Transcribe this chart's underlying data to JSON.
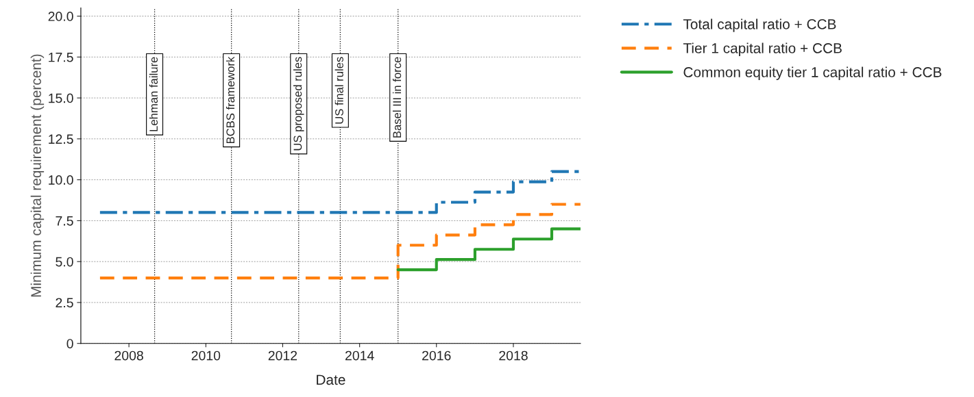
{
  "chart_data": {
    "type": "step",
    "xlabel": "Date",
    "ylabel": "Minimum capital requirement (percent)",
    "xlim": [
      "2006-10",
      "2019-10"
    ],
    "xticks": [
      {
        "value": "2008-01-01",
        "label": "2008"
      },
      {
        "value": "2010-01-01",
        "label": "2010"
      },
      {
        "value": "2012-01-01",
        "label": "2012"
      },
      {
        "value": "2014-01-01",
        "label": "2014"
      },
      {
        "value": "2016-01-01",
        "label": "2016"
      },
      {
        "value": "2018-01-01",
        "label": "2018"
      }
    ],
    "ylim": [
      0,
      20.5
    ],
    "yticks": [
      0,
      {
        "value": 2.5,
        "label": "2.5"
      },
      {
        "value": 5,
        "label": "5.0"
      },
      {
        "value": 7.5,
        "label": "7.5"
      },
      {
        "value": 10,
        "label": "10.0"
      },
      {
        "value": 12.5,
        "label": "12.5"
      },
      {
        "value": 15,
        "label": "15.0"
      },
      {
        "value": 17.5,
        "label": "17.5"
      },
      {
        "value": 20,
        "label": "20.0"
      }
    ],
    "grid": "y",
    "legend": "top right",
    "marker": "none",
    "series": [
      {
        "name": "Total capital ratio + CCB",
        "color": "#1f77b4",
        "line_style": "dashdot",
        "x": [
          "2007-04",
          "2016-01",
          "2017-01",
          "2018-01",
          "2019-01",
          "2019-10"
        ],
        "values": [
          8,
          8.625,
          9.25,
          9.875,
          10.5,
          10.5
        ]
      },
      {
        "name": "Tier 1 capital ratio + CCB",
        "color": "#ff7f0e",
        "line_style": "dashed",
        "x": [
          "2007-04",
          "2015-01",
          "2016-01",
          "2017-01",
          "2018-01",
          "2019-01",
          "2019-10"
        ],
        "values": [
          4,
          6,
          6.625,
          7.25,
          7.875,
          8.5,
          8.5
        ]
      },
      {
        "name": "Common equity tier 1 capital ratio + CCB",
        "color": "#2ca02c",
        "line_style": "solid",
        "x": [
          "2015-01",
          "2016-01",
          "2017-01",
          "2018-01",
          "2019-01",
          "2019-10"
        ],
        "values": [
          4.5,
          5.125,
          5.75,
          6.375,
          7,
          7
        ]
      }
    ],
    "ref_lines": [
      {
        "axis": "x",
        "value": "2008-09",
        "label": "Lehman failure",
        "color": "#000000",
        "line_style": "dotted"
      },
      {
        "axis": "x",
        "value": "2010-09",
        "label": "BCBS framework",
        "color": "#000000",
        "line_style": "dotted"
      },
      {
        "axis": "x",
        "value": "2012-06",
        "label": "US proposed rules",
        "color": "#000000",
        "line_style": "dotted"
      },
      {
        "axis": "x",
        "value": "2013-07",
        "label": "US final rules",
        "color": "#000000",
        "line_style": "dotted"
      },
      {
        "axis": "x",
        "value": "2015-01",
        "label": "Basel III in force",
        "color": "#000000",
        "line_style": "dotted"
      }
    ]
  }
}
